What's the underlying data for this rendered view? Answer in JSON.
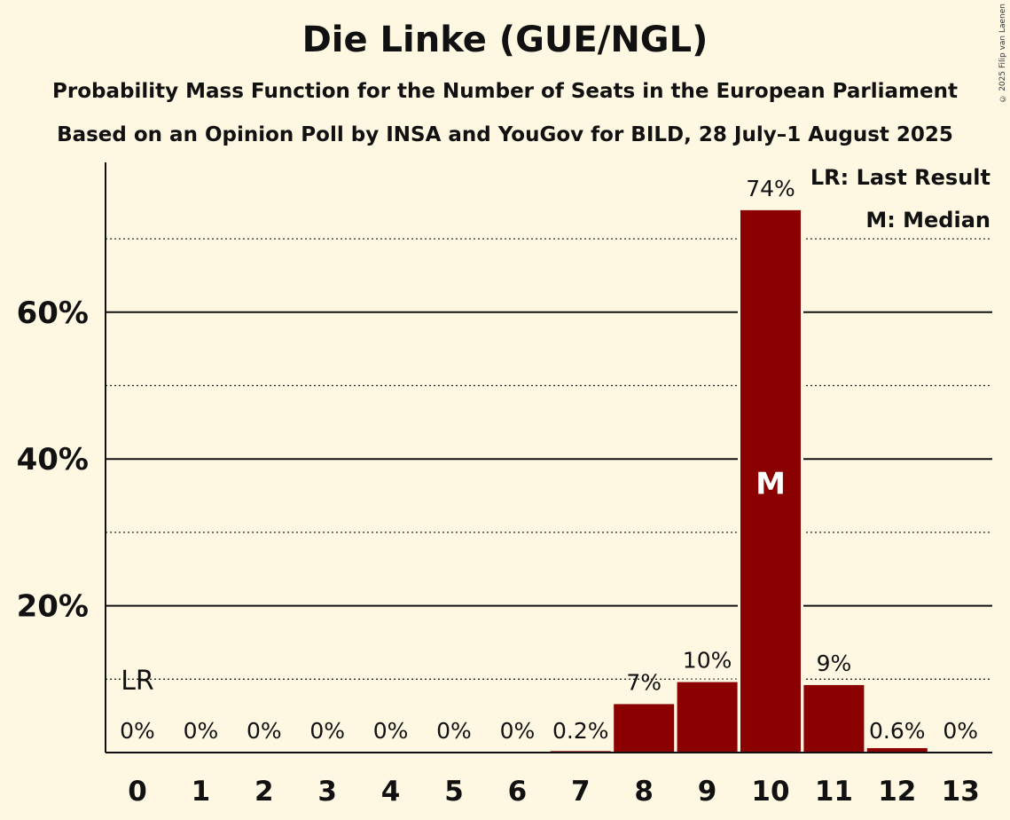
{
  "chart_data": {
    "type": "bar",
    "title": "Die Linke (GUE/NGL)",
    "subtitle": "Probability Mass Function for the Number of Seats in the European Parliament",
    "subtitle2": "Based on an Opinion Poll by INSA and YouGov for BILD, 28 July–1 August 2025",
    "categories": [
      "0",
      "1",
      "2",
      "3",
      "4",
      "5",
      "6",
      "7",
      "8",
      "9",
      "10",
      "11",
      "12",
      "13"
    ],
    "values": [
      0,
      0,
      0,
      0,
      0,
      0,
      0,
      0.2,
      6.6,
      9.6,
      73.9,
      9.2,
      0.6,
      0
    ],
    "labels": [
      "0%",
      "0%",
      "0%",
      "0%",
      "0%",
      "0%",
      "0%",
      "0.2%",
      "7%",
      "10%",
      "74%",
      "9%",
      "0.6%",
      "0%"
    ],
    "ylim": [
      0,
      80
    ],
    "yticks": [
      {
        "value": 20,
        "label": "20%"
      },
      {
        "value": 40,
        "label": "40%"
      },
      {
        "value": 60,
        "label": "60%"
      }
    ],
    "minor_gridlines": [
      10,
      30,
      50,
      70
    ],
    "last_result_index": 0,
    "last_result_marker": "LR",
    "median_index": 10,
    "median_marker": "M",
    "legend": [
      "LR: Last Result",
      "M: Median"
    ],
    "bar_color": "#8b0000"
  },
  "copyright": "© 2025 Filip van Laenen"
}
